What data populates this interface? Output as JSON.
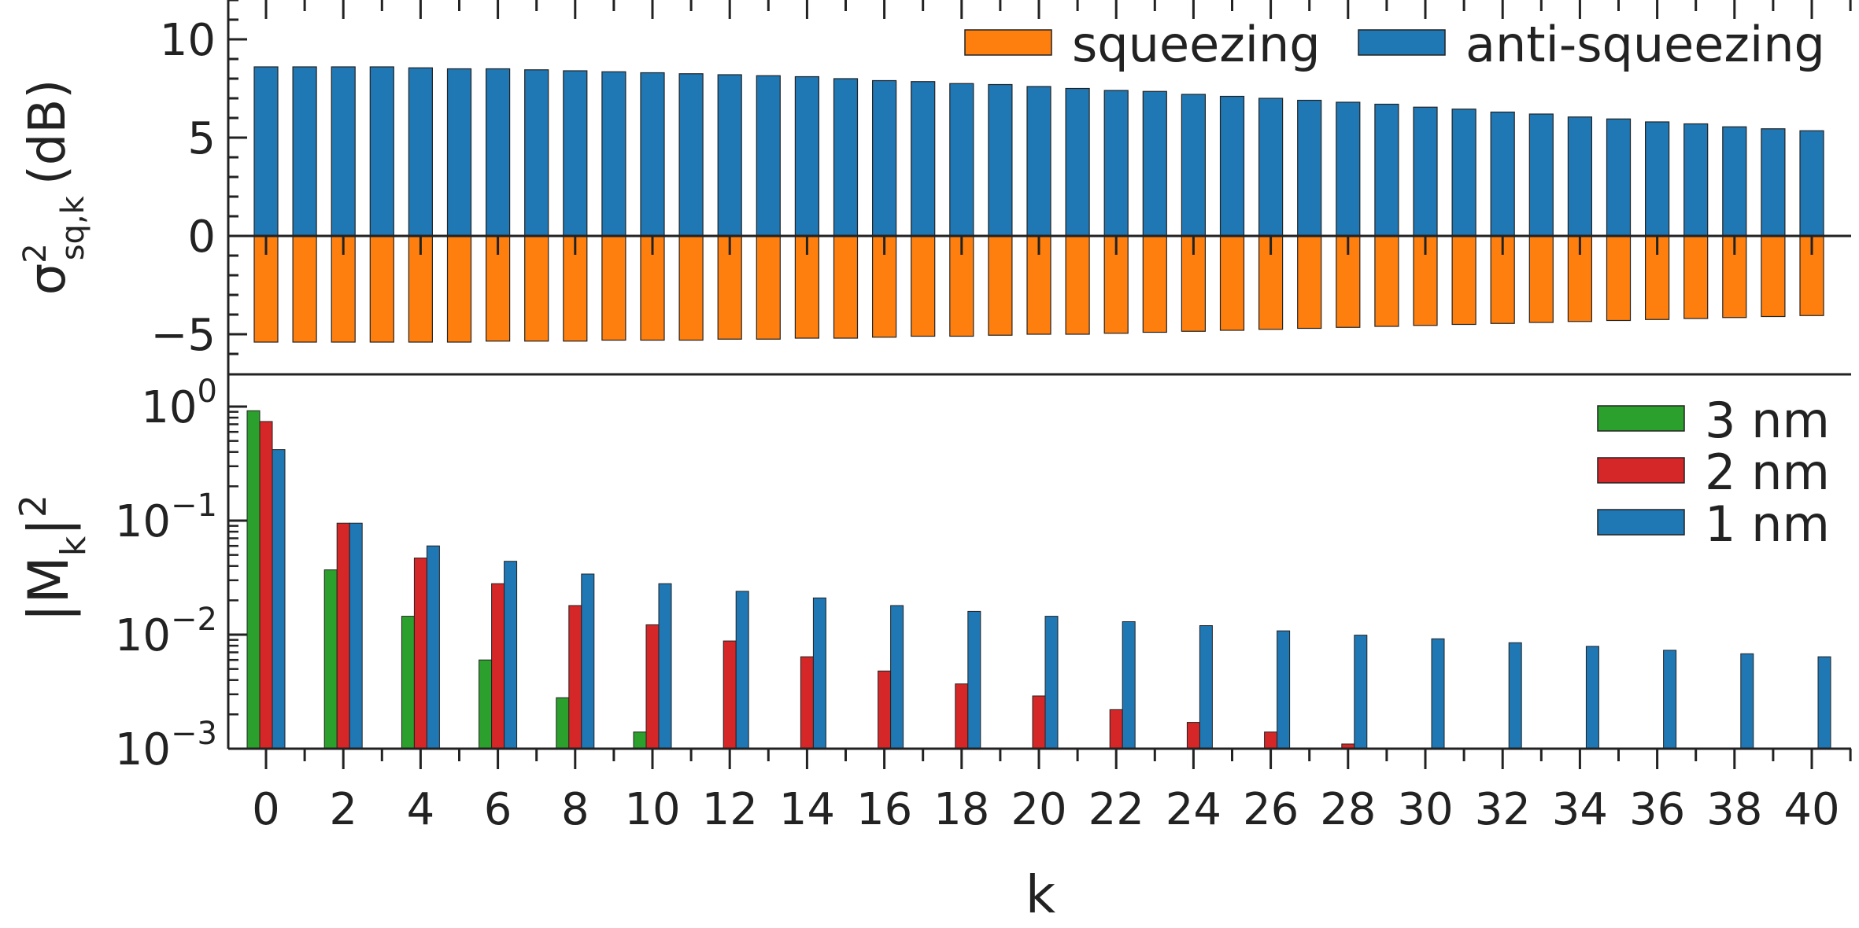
{
  "chart_data": [
    {
      "type": "bar",
      "panel": "top",
      "ylabel": "σ²sq,k (dB)",
      "ylabel_parts": {
        "base": "σ",
        "sup": "2",
        "sub": "sq,k",
        "unit": "(dB)"
      },
      "ylim": [
        -7,
        12
      ],
      "yticks": [
        10,
        5,
        0,
        -5
      ],
      "ytick_labels": [
        "10",
        "5",
        "0",
        "−5"
      ],
      "legend": {
        "position": "top-right",
        "entries": [
          "squeezing",
          "anti-squeezing"
        ]
      },
      "k": [
        0,
        1,
        2,
        3,
        4,
        5,
        6,
        7,
        8,
        9,
        10,
        11,
        12,
        13,
        14,
        15,
        16,
        17,
        18,
        19,
        20,
        21,
        22,
        23,
        24,
        25,
        26,
        27,
        28,
        29,
        30,
        31,
        32,
        33,
        34,
        35,
        36,
        37,
        38,
        39,
        40
      ],
      "series": [
        {
          "name": "anti-squeezing",
          "color": "#1f77b4",
          "values": [
            8.6,
            8.6,
            8.6,
            8.6,
            8.55,
            8.5,
            8.5,
            8.45,
            8.4,
            8.35,
            8.3,
            8.25,
            8.2,
            8.15,
            8.1,
            8.0,
            7.9,
            7.85,
            7.75,
            7.7,
            7.6,
            7.5,
            7.4,
            7.35,
            7.2,
            7.1,
            7.0,
            6.9,
            6.8,
            6.7,
            6.55,
            6.45,
            6.3,
            6.2,
            6.05,
            5.95,
            5.8,
            5.7,
            5.55,
            5.45,
            5.35
          ]
        },
        {
          "name": "squeezing",
          "color": "#ff7f0e",
          "values": [
            -5.4,
            -5.4,
            -5.4,
            -5.4,
            -5.4,
            -5.4,
            -5.35,
            -5.35,
            -5.35,
            -5.3,
            -5.3,
            -5.3,
            -5.25,
            -5.25,
            -5.2,
            -5.2,
            -5.15,
            -5.1,
            -5.1,
            -5.05,
            -5.0,
            -5.0,
            -4.95,
            -4.9,
            -4.85,
            -4.8,
            -4.75,
            -4.7,
            -4.65,
            -4.6,
            -4.55,
            -4.5,
            -4.45,
            -4.4,
            -4.35,
            -4.3,
            -4.25,
            -4.2,
            -4.15,
            -4.1,
            -4.05
          ]
        }
      ]
    },
    {
      "type": "bar",
      "panel": "bottom",
      "yscale": "log",
      "ylabel": "|Mk|²",
      "ylabel_parts": {
        "base": "|M",
        "sub": "k",
        "close": "|",
        "sup": "2"
      },
      "ylim": [
        0.001,
        1.6
      ],
      "yticks": [
        {
          "base": "10",
          "exp": "0",
          "value": 1
        },
        {
          "base": "10",
          "exp": "−1",
          "value": 0.1
        },
        {
          "base": "10",
          "exp": "−2",
          "value": 0.01
        },
        {
          "base": "10",
          "exp": "−3",
          "value": 0.001
        }
      ],
      "legend": {
        "position": "top-right",
        "entries": [
          "3 nm",
          "2 nm",
          "1 nm"
        ]
      },
      "k": [
        0,
        2,
        4,
        6,
        8,
        10,
        12,
        14,
        16,
        18,
        20,
        22,
        24,
        26,
        28,
        30,
        32,
        34,
        36,
        38,
        40
      ],
      "series": [
        {
          "name": "3 nm",
          "color": "#2ca02c",
          "values": [
            0.92,
            0.037,
            0.0145,
            0.006,
            0.0028,
            0.0014,
            null,
            null,
            null,
            null,
            null,
            null,
            null,
            null,
            null,
            null,
            null,
            null,
            null,
            null,
            null
          ]
        },
        {
          "name": "2 nm",
          "color": "#d62728",
          "values": [
            0.74,
            0.095,
            0.047,
            0.028,
            0.018,
            0.0122,
            0.0088,
            0.0064,
            0.0048,
            0.0037,
            0.0029,
            0.0022,
            0.0017,
            0.0014,
            0.0011,
            null,
            null,
            null,
            null,
            null,
            null
          ]
        },
        {
          "name": "1 nm",
          "color": "#1f77b4",
          "values": [
            0.42,
            0.095,
            0.06,
            0.044,
            0.034,
            0.028,
            0.024,
            0.021,
            0.018,
            0.016,
            0.0145,
            0.013,
            0.012,
            0.0108,
            0.0099,
            0.0092,
            0.0085,
            0.0079,
            0.0073,
            0.0068,
            0.0064
          ]
        }
      ]
    }
  ],
  "shared_xaxis": {
    "xlabel": "k",
    "xticks": [
      "0",
      "2",
      "4",
      "6",
      "8",
      "10",
      "12",
      "14",
      "16",
      "18",
      "20",
      "22",
      "24",
      "26",
      "28",
      "30",
      "32",
      "34",
      "36",
      "38",
      "40"
    ]
  }
}
